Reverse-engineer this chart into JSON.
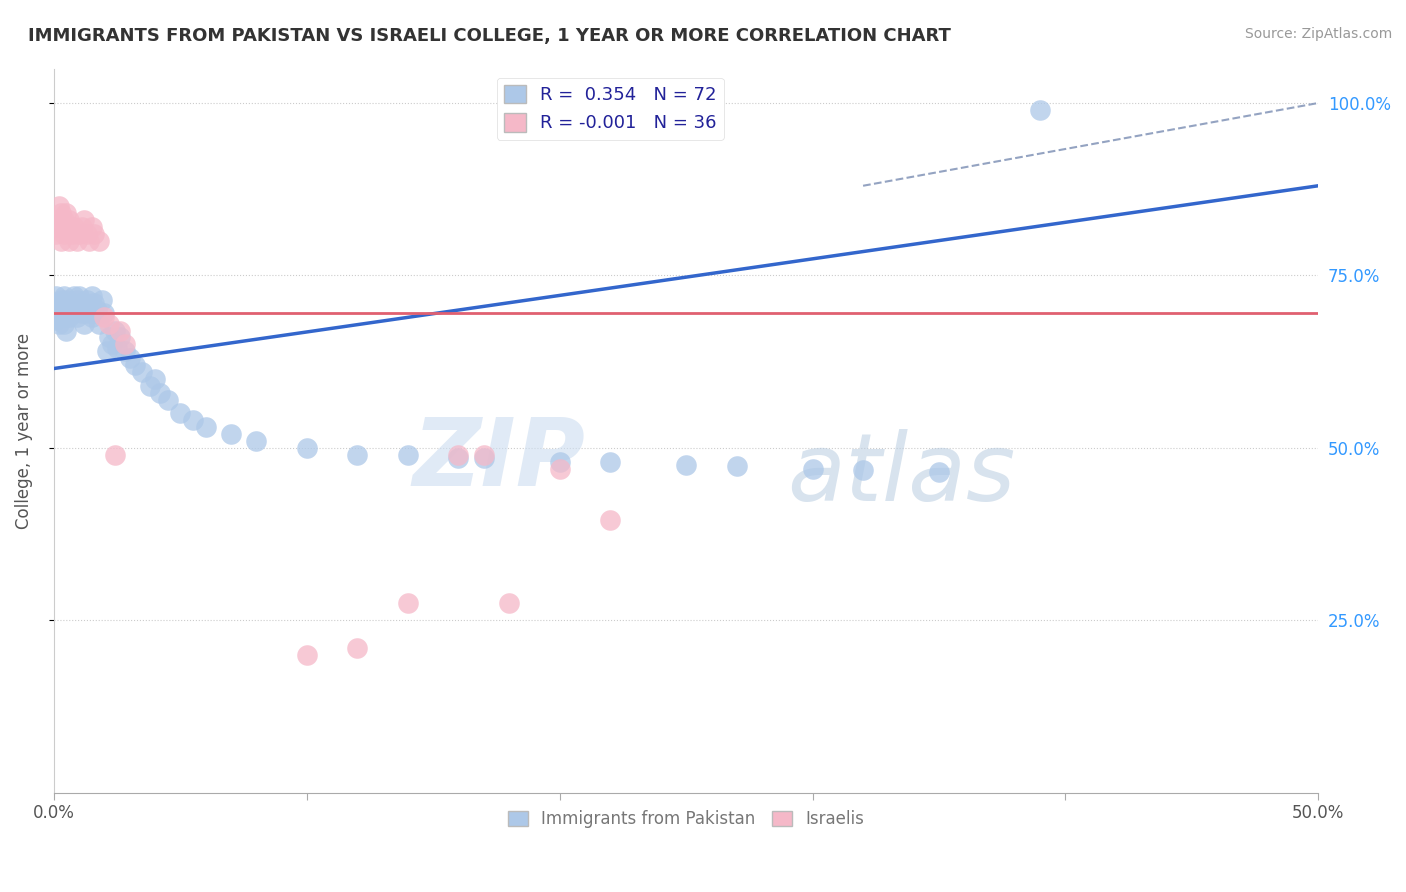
{
  "title": "IMMIGRANTS FROM PAKISTAN VS ISRAELI COLLEGE, 1 YEAR OR MORE CORRELATION CHART",
  "source": "Source: ZipAtlas.com",
  "ylabel_label": "College, 1 year or more",
  "legend_blue_label": "Immigrants from Pakistan",
  "legend_pink_label": "Israelis",
  "R_blue": 0.354,
  "N_blue": 72,
  "R_pink": -0.001,
  "N_pink": 36,
  "blue_color": "#adc8e8",
  "pink_color": "#f5b8c8",
  "regression_blue_color": "#3366cc",
  "regression_pink_color": "#e06070",
  "blue_scatter": [
    [
      0.001,
      0.685
    ],
    [
      0.001,
      0.7
    ],
    [
      0.001,
      0.72
    ],
    [
      0.002,
      0.68
    ],
    [
      0.002,
      0.7
    ],
    [
      0.002,
      0.71
    ],
    [
      0.003,
      0.69
    ],
    [
      0.003,
      0.705
    ],
    [
      0.003,
      0.715
    ],
    [
      0.004,
      0.7
    ],
    [
      0.004,
      0.72
    ],
    [
      0.004,
      0.68
    ],
    [
      0.005,
      0.695
    ],
    [
      0.005,
      0.715
    ],
    [
      0.005,
      0.67
    ],
    [
      0.006,
      0.705
    ],
    [
      0.006,
      0.69
    ],
    [
      0.007,
      0.71
    ],
    [
      0.007,
      0.695
    ],
    [
      0.008,
      0.72
    ],
    [
      0.008,
      0.7
    ],
    [
      0.009,
      0.715
    ],
    [
      0.009,
      0.69
    ],
    [
      0.01,
      0.705
    ],
    [
      0.01,
      0.72
    ],
    [
      0.011,
      0.695
    ],
    [
      0.011,
      0.71
    ],
    [
      0.012,
      0.7
    ],
    [
      0.012,
      0.68
    ],
    [
      0.013,
      0.715
    ],
    [
      0.013,
      0.695
    ],
    [
      0.014,
      0.705
    ],
    [
      0.015,
      0.72
    ],
    [
      0.015,
      0.69
    ],
    [
      0.016,
      0.71
    ],
    [
      0.016,
      0.695
    ],
    [
      0.017,
      0.7
    ],
    [
      0.018,
      0.68
    ],
    [
      0.019,
      0.715
    ],
    [
      0.02,
      0.695
    ],
    [
      0.021,
      0.64
    ],
    [
      0.022,
      0.66
    ],
    [
      0.023,
      0.65
    ],
    [
      0.024,
      0.67
    ],
    [
      0.025,
      0.645
    ],
    [
      0.026,
      0.66
    ],
    [
      0.028,
      0.64
    ],
    [
      0.03,
      0.63
    ],
    [
      0.032,
      0.62
    ],
    [
      0.035,
      0.61
    ],
    [
      0.038,
      0.59
    ],
    [
      0.04,
      0.6
    ],
    [
      0.042,
      0.58
    ],
    [
      0.045,
      0.57
    ],
    [
      0.05,
      0.55
    ],
    [
      0.055,
      0.54
    ],
    [
      0.06,
      0.53
    ],
    [
      0.07,
      0.52
    ],
    [
      0.08,
      0.51
    ],
    [
      0.1,
      0.5
    ],
    [
      0.12,
      0.49
    ],
    [
      0.14,
      0.49
    ],
    [
      0.16,
      0.485
    ],
    [
      0.2,
      0.48
    ],
    [
      0.25,
      0.475
    ],
    [
      0.3,
      0.47
    ],
    [
      0.35,
      0.465
    ],
    [
      0.39,
      0.99
    ],
    [
      0.17,
      0.485
    ],
    [
      0.22,
      0.48
    ],
    [
      0.27,
      0.474
    ],
    [
      0.32,
      0.468
    ]
  ],
  "pink_scatter": [
    [
      0.001,
      0.83
    ],
    [
      0.001,
      0.81
    ],
    [
      0.002,
      0.85
    ],
    [
      0.002,
      0.82
    ],
    [
      0.003,
      0.84
    ],
    [
      0.003,
      0.8
    ],
    [
      0.004,
      0.83
    ],
    [
      0.004,
      0.81
    ],
    [
      0.005,
      0.82
    ],
    [
      0.005,
      0.84
    ],
    [
      0.006,
      0.8
    ],
    [
      0.006,
      0.83
    ],
    [
      0.007,
      0.81
    ],
    [
      0.008,
      0.82
    ],
    [
      0.009,
      0.8
    ],
    [
      0.01,
      0.81
    ],
    [
      0.011,
      0.82
    ],
    [
      0.012,
      0.83
    ],
    [
      0.013,
      0.81
    ],
    [
      0.014,
      0.8
    ],
    [
      0.015,
      0.82
    ],
    [
      0.016,
      0.81
    ],
    [
      0.018,
      0.8
    ],
    [
      0.02,
      0.69
    ],
    [
      0.022,
      0.68
    ],
    [
      0.024,
      0.49
    ],
    [
      0.026,
      0.67
    ],
    [
      0.028,
      0.65
    ],
    [
      0.17,
      0.49
    ],
    [
      0.2,
      0.47
    ],
    [
      0.22,
      0.395
    ],
    [
      0.16,
      0.49
    ],
    [
      0.14,
      0.275
    ],
    [
      0.18,
      0.275
    ],
    [
      0.1,
      0.2
    ],
    [
      0.12,
      0.21
    ]
  ],
  "xlim": [
    0.0,
    0.5
  ],
  "ylim": [
    0.0,
    1.05
  ],
  "xtick_positions": [
    0.0,
    0.1,
    0.2,
    0.3,
    0.4,
    0.5
  ],
  "ytick_positions": [
    0.25,
    0.5,
    0.75,
    1.0
  ],
  "blue_line_x": [
    0.0,
    0.5
  ],
  "blue_line_y": [
    0.615,
    0.88
  ],
  "pink_line_x": [
    0.0,
    0.5
  ],
  "pink_line_y": [
    0.695,
    0.695
  ],
  "dashed_line_x": [
    0.32,
    0.5
  ],
  "dashed_line_y": [
    0.88,
    1.0
  ],
  "watermark_zip": "ZIP",
  "watermark_atlas": "atlas",
  "background_color": "#ffffff",
  "grid_color": "#cccccc"
}
